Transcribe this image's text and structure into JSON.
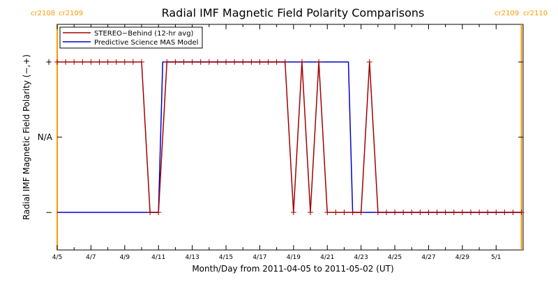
{
  "chart_data": {
    "type": "line",
    "title": "Radial IMF Magnetic Field Polarity Comparisons",
    "xlabel": "Month/Day from 2011-04-05 to 2011-05-02 (UT)",
    "ylabel": "Radial IMF Magnetic Field Polarity (−,+)",
    "xlim": [
      0,
      27.6
    ],
    "ylim": [
      -1.5,
      1.5
    ],
    "x_tick_values": [
      0,
      2,
      4,
      6,
      8,
      10,
      12,
      14,
      16,
      18,
      20,
      22,
      24,
      26
    ],
    "x_tick_labels": [
      "4/5",
      "4/7",
      "4/9",
      "4/11",
      "4/13",
      "4/15",
      "4/17",
      "4/19",
      "4/21",
      "4/23",
      "4/25",
      "4/27",
      "4/29",
      "5/1"
    ],
    "y_ticks": [
      {
        "value": 1,
        "label": "+"
      },
      {
        "value": 0,
        "label": "N/A"
      },
      {
        "value": -1,
        "label": "−"
      }
    ],
    "colors": {
      "stereo": "#a00000",
      "mas": "#0000cc",
      "cr_marker": "#ff9900",
      "frame": "#000000"
    },
    "carrington_markers": [
      {
        "x": 0.0,
        "left_label": "cr2108",
        "right_label": "cr2109"
      },
      {
        "x": 27.5,
        "left_label": "cr2109",
        "right_label": "cr2110"
      }
    ],
    "series": [
      {
        "name": "STEREO−Behind (12-hr avg)",
        "marker": "plus",
        "x": [
          0.0,
          0.5,
          1.0,
          1.5,
          2.0,
          2.5,
          3.0,
          3.5,
          4.0,
          4.5,
          5.0,
          5.5,
          6.0,
          6.5,
          7.0,
          7.5,
          8.0,
          8.5,
          9.0,
          9.5,
          10.0,
          10.5,
          11.0,
          11.5,
          12.0,
          12.5,
          13.0,
          13.5,
          14.0,
          14.5,
          15.0,
          15.5,
          16.0,
          16.5,
          17.0,
          17.5,
          18.0,
          18.5,
          19.0,
          19.5,
          20.0,
          20.5,
          21.0,
          21.5,
          22.0,
          22.5,
          23.0,
          23.5,
          24.0,
          24.5,
          25.0,
          25.5,
          26.0,
          26.5,
          27.0,
          27.5
        ],
        "y": [
          1,
          1,
          1,
          1,
          1,
          1,
          1,
          1,
          1,
          1,
          1,
          -1,
          -1,
          1,
          1,
          1,
          1,
          1,
          1,
          1,
          1,
          1,
          1,
          1,
          1,
          1,
          1,
          1,
          -1,
          1,
          -1,
          1,
          -1,
          -1,
          -1,
          -1,
          -1,
          1,
          -1,
          -1,
          -1,
          -1,
          -1,
          -1,
          -1,
          -1,
          -1,
          -1,
          -1,
          -1,
          -1,
          -1,
          -1,
          -1,
          -1,
          -1
        ]
      },
      {
        "name": "Predictive Science MAS Model",
        "marker": "none",
        "x": [
          0.0,
          6.0,
          6.25,
          17.25,
          17.5,
          27.5
        ],
        "y": [
          -1,
          -1,
          1,
          1,
          -1,
          -1
        ]
      }
    ]
  }
}
